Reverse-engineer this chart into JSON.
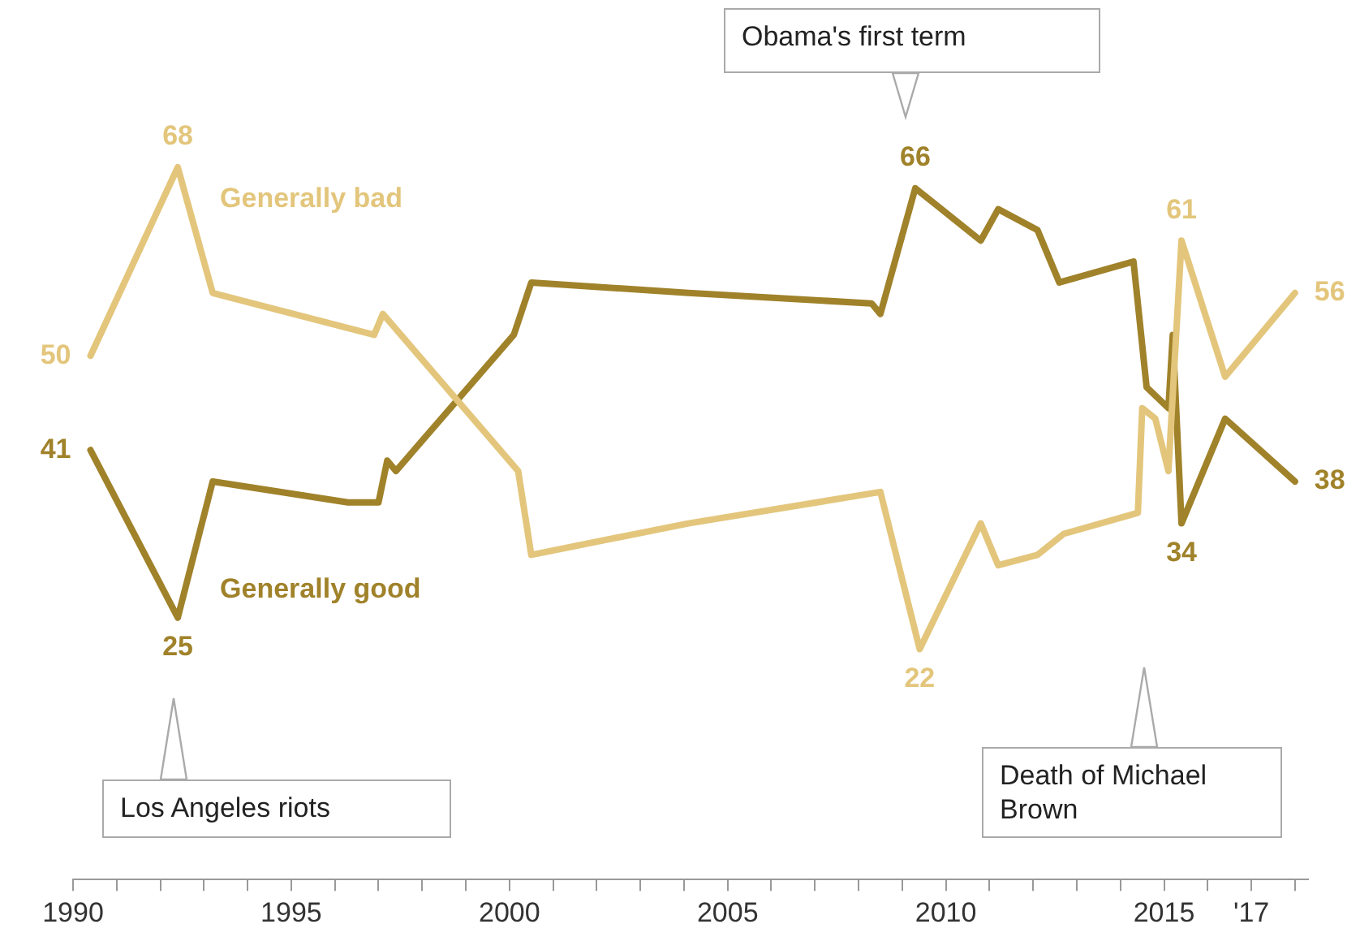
{
  "chart_data": {
    "type": "line",
    "x": [
      1990.4,
      1992.4,
      1993.2,
      1996.9,
      1997.1,
      2000.2,
      2000.5,
      2004.1,
      2008.5,
      2009.4,
      2010.8,
      2011.2,
      2012.1,
      2012.7,
      2014.4,
      2014.5,
      2014.8,
      2015.1,
      2015.4,
      2016.4,
      2018.0
    ],
    "series": [
      {
        "name": "Generally bad",
        "color": "#e3c67c",
        "values": [
          50,
          68,
          56,
          52,
          54,
          39,
          31,
          34,
          37,
          22,
          34,
          30,
          31,
          33,
          35,
          45,
          44,
          39,
          61,
          48,
          56
        ],
        "value_labels": [
          "50",
          "68",
          null,
          null,
          null,
          null,
          null,
          null,
          null,
          "22",
          null,
          null,
          null,
          null,
          null,
          null,
          null,
          null,
          "61",
          null,
          "56"
        ]
      },
      {
        "name": "Generally good",
        "color": "#a0822a",
        "x": [
          1990.4,
          1992.4,
          1993.2,
          1996.3,
          1997.0,
          1997.2,
          1997.4,
          2000.1,
          2000.5,
          2004.1,
          2008.3,
          2008.5,
          2009.3,
          2010.8,
          2011.2,
          2012.1,
          2012.6,
          2014.3,
          2014.6,
          2015.1,
          2015.2,
          2015.4,
          2016.4,
          2018.0
        ],
        "values": [
          41,
          25,
          38,
          36,
          36,
          40,
          39,
          52,
          57,
          56,
          55,
          54,
          66,
          61,
          64,
          62,
          57,
          59,
          47,
          45,
          52,
          34,
          44,
          38
        ],
        "value_labels": [
          "41",
          "25",
          null,
          null,
          null,
          null,
          null,
          null,
          null,
          null,
          null,
          null,
          "66",
          null,
          null,
          null,
          null,
          null,
          null,
          null,
          null,
          "34",
          null,
          "38"
        ]
      }
    ],
    "xlim": [
      1990,
      2018.3
    ],
    "xticks": [
      1990,
      {
        "value": 1991,
        "label": null
      },
      {
        "value": 1992,
        "label": null
      },
      {
        "value": 1993,
        "label": null
      },
      {
        "value": 1994,
        "label": null
      },
      1995,
      {
        "value": 1996,
        "label": null
      },
      {
        "value": 1997,
        "label": null
      },
      {
        "value": 1998,
        "label": null
      },
      {
        "value": 1999,
        "label": null
      },
      2000,
      {
        "value": 2001,
        "label": null
      },
      {
        "value": 2002,
        "label": null
      },
      {
        "value": 2003,
        "label": null
      },
      {
        "value": 2004,
        "label": null
      },
      2005,
      {
        "value": 2006,
        "label": null
      },
      {
        "value": 2007,
        "label": null
      },
      {
        "value": 2008,
        "label": null
      },
      {
        "value": 2009,
        "label": null
      },
      2010,
      {
        "value": 2011,
        "label": null
      },
      {
        "value": 2012,
        "label": null
      },
      {
        "value": 2013,
        "label": null
      },
      {
        "value": 2014,
        "label": null
      },
      2015,
      {
        "value": 2016,
        "label": null
      },
      {
        "value": 2017,
        "label": "'17"
      },
      {
        "value": 2018,
        "label": null
      }
    ],
    "tick_labels": "x",
    "grid": false,
    "legend": false,
    "marker": "none",
    "annotations": [
      "Obama's first term",
      "Los Angeles riots",
      "Death of Michael Brown"
    ]
  }
}
